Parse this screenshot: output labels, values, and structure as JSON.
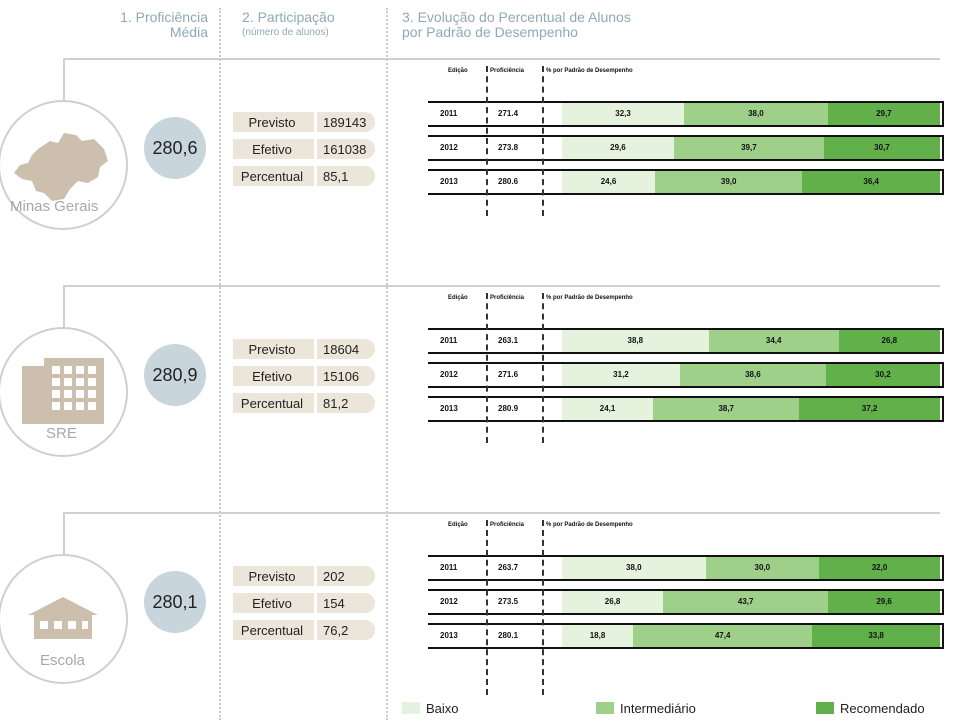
{
  "headers": {
    "proficiencia": [
      "1. Proficiência",
      "Média"
    ],
    "participacao": "2. Participação",
    "participacao_sub": "(número de alunos)",
    "evolucao": [
      "3. Evolução do Percentual de Alunos",
      "por Padrão de Desempenho"
    ]
  },
  "table_headers": {
    "edicao": "Edição",
    "proficiencia": "Proficiência",
    "percentual": "% por Padrão de Desempenho"
  },
  "participation_labels": {
    "previsto": "Previsto",
    "efetivo": "Efetivo",
    "percentual": "Percentual"
  },
  "colors": {
    "baixo": "#e4f2de",
    "intermediario": "#9fd08a",
    "recomendado": "#62b04a",
    "circle": "#c9d5dd",
    "pill": "#ece5d9"
  },
  "legend": [
    {
      "label": "Baixo",
      "color": "#e4f2de"
    },
    {
      "label": "Intermediário",
      "color": "#9fd08a"
    },
    {
      "label": "Recomendado",
      "color": "#62b04a"
    }
  ],
  "sections": [
    {
      "name": "Minas Gerais",
      "icon": "map-minas-gerais-icon",
      "proficiency": "280,6",
      "previsto": "189143",
      "efetivo": "161038",
      "percentual": "85,1"
    },
    {
      "name": "SRE",
      "icon": "building-icon",
      "proficiency": "280,9",
      "previsto": "18604",
      "efetivo": "15106",
      "percentual": "81,2"
    },
    {
      "name": "Escola",
      "icon": "school-icon",
      "proficiency": "280,1",
      "previsto": "202",
      "efetivo": "154",
      "percentual": "76,2"
    }
  ],
  "chart_data": [
    {
      "type": "bar",
      "stacked": true,
      "orientation": "horizontal",
      "entity": "Minas Gerais",
      "categories": [
        "2011",
        "2012",
        "2013"
      ],
      "proficiencia": [
        "271.4",
        "273.8",
        "280.6"
      ],
      "series": [
        {
          "name": "Baixo",
          "values": [
            32.3,
            29.6,
            24.6
          ],
          "labels": [
            "32,3",
            "29,6",
            "24,6"
          ]
        },
        {
          "name": "Intermediário",
          "values": [
            38.0,
            39.7,
            39.0
          ],
          "labels": [
            "38,0",
            "39,7",
            "39,0"
          ]
        },
        {
          "name": "Recomendado",
          "values": [
            29.7,
            30.7,
            36.4
          ],
          "labels": [
            "29,7",
            "30,7",
            "36,4"
          ]
        }
      ]
    },
    {
      "type": "bar",
      "stacked": true,
      "orientation": "horizontal",
      "entity": "SRE",
      "categories": [
        "2011",
        "2012",
        "2013"
      ],
      "proficiencia": [
        "263.1",
        "271.6",
        "280.9"
      ],
      "series": [
        {
          "name": "Baixo",
          "values": [
            38.8,
            31.2,
            24.1
          ],
          "labels": [
            "38,8",
            "31,2",
            "24,1"
          ]
        },
        {
          "name": "Intermediário",
          "values": [
            34.4,
            38.6,
            38.7
          ],
          "labels": [
            "34,4",
            "38,6",
            "38,7"
          ]
        },
        {
          "name": "Recomendado",
          "values": [
            26.8,
            30.2,
            37.2
          ],
          "labels": [
            "26,8",
            "30,2",
            "37,2"
          ]
        }
      ]
    },
    {
      "type": "bar",
      "stacked": true,
      "orientation": "horizontal",
      "entity": "Escola",
      "categories": [
        "2011",
        "2012",
        "2013"
      ],
      "proficiencia": [
        "263.7",
        "273.5",
        "280.1"
      ],
      "series": [
        {
          "name": "Baixo",
          "values": [
            38.0,
            26.8,
            18.8
          ],
          "labels": [
            "38,0",
            "26,8",
            "18,8"
          ]
        },
        {
          "name": "Intermediário",
          "values": [
            30.0,
            43.7,
            47.4
          ],
          "labels": [
            "30,0",
            "43,7",
            "47,4"
          ]
        },
        {
          "name": "Recomendado",
          "values": [
            32.0,
            29.6,
            33.8
          ],
          "labels": [
            "32,0",
            "29,6",
            "33,8"
          ]
        }
      ]
    }
  ]
}
